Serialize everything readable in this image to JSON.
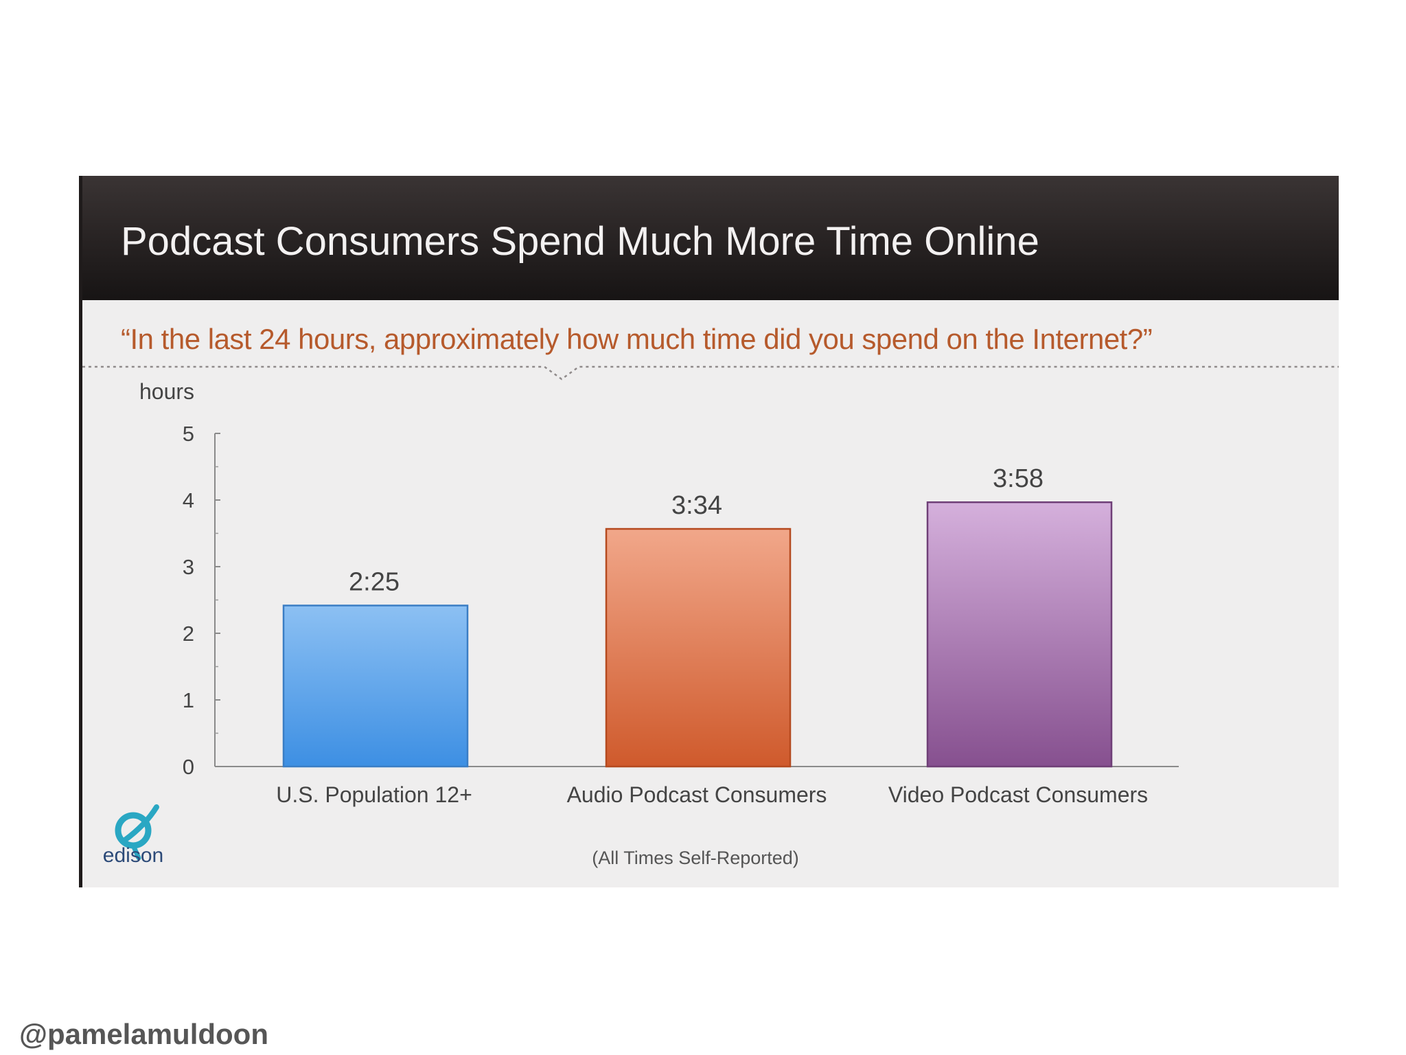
{
  "slide": {
    "title": "Podcast Consumers Spend Much More Time Online",
    "question": "“In the last 24 hours, approximately how much time did you spend on the Internet?”",
    "footnote": "(All Times Self-Reported)",
    "logo_text": "edison",
    "logo_icon": "edison-logo-icon",
    "handle": "@pamelamuldoon"
  },
  "chart_data": {
    "type": "bar",
    "ylabel": "hours",
    "ylim": [
      0,
      5
    ],
    "yticks": [
      0,
      1,
      2,
      3,
      4,
      5
    ],
    "grid": false,
    "categories": [
      "U.S. Population 12+",
      "Audio Podcast Consumers",
      "Video Podcast Consumers"
    ],
    "values": [
      2.4167,
      3.5667,
      3.9667
    ],
    "data_labels": [
      "2:25",
      "3:34",
      "3:58"
    ],
    "colors": [
      {
        "top": "#8cc0f3",
        "bottom": "#3d8fe3",
        "edge": "#3a7dc4"
      },
      {
        "top": "#f1a78a",
        "bottom": "#cf5a2c",
        "edge": "#b54a1f"
      },
      {
        "top": "#d5b0dc",
        "bottom": "#86508f",
        "edge": "#6f3f77"
      }
    ]
  }
}
